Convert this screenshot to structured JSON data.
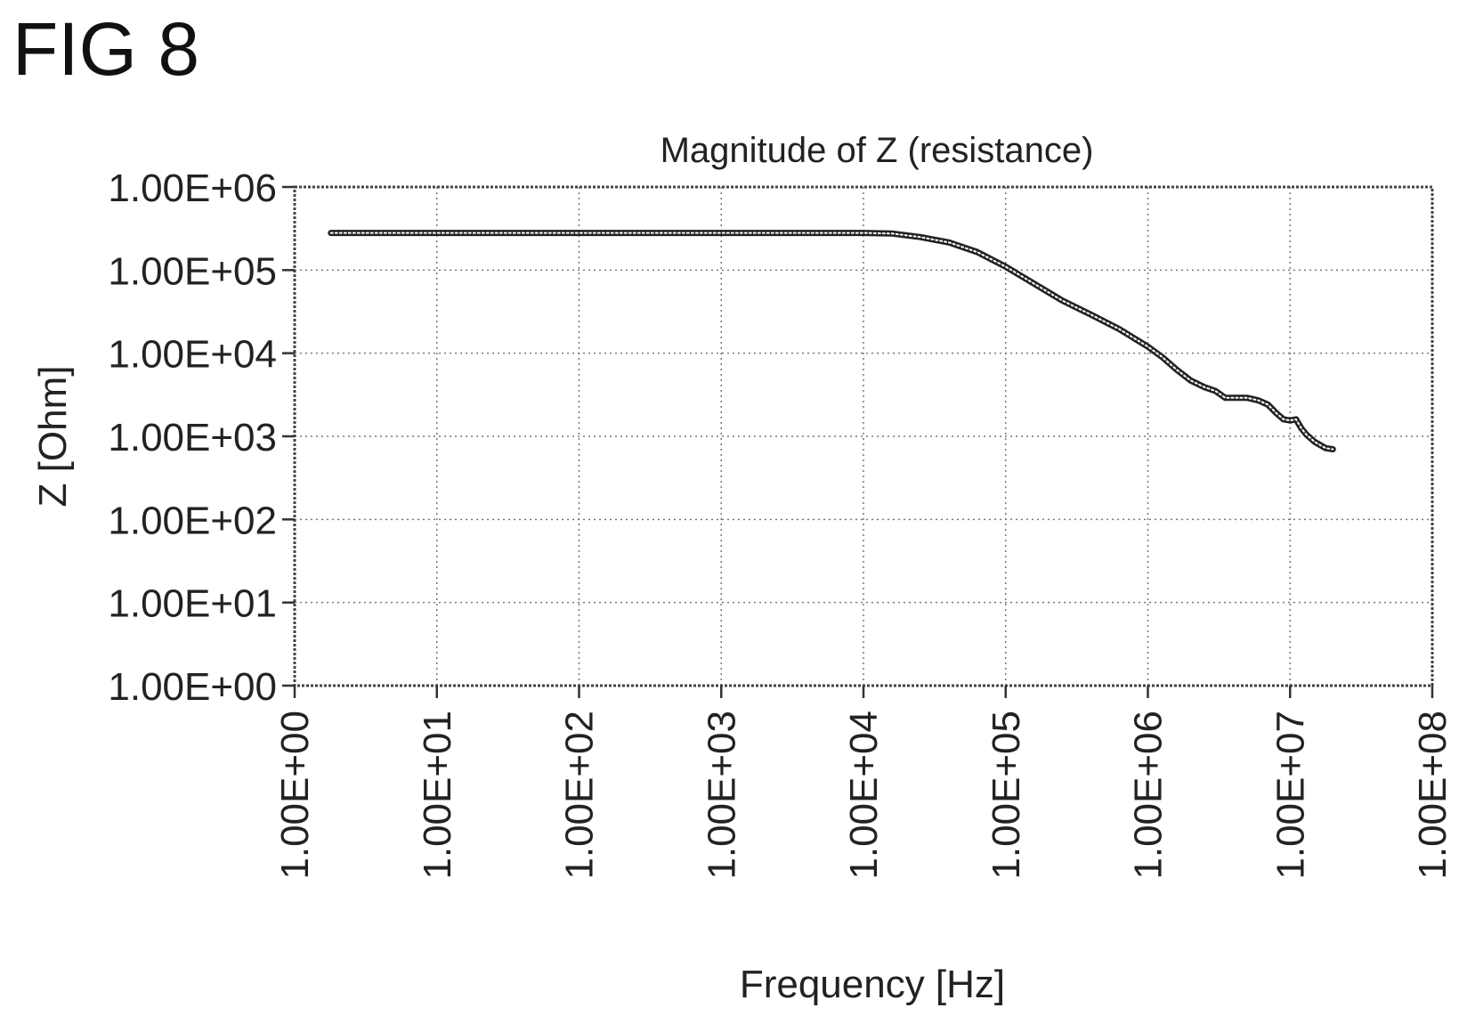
{
  "figure_label": "FIG 8",
  "chart_data": {
    "type": "line",
    "title": "Magnitude of Z (resistance)",
    "xlabel": "Frequency [Hz]",
    "ylabel": "Z [Ohm]",
    "x_scale": "log",
    "y_scale": "log",
    "xlim": [
      1,
      100000000
    ],
    "ylim": [
      1,
      1000000
    ],
    "grid": true,
    "x_ticks": [
      1,
      10,
      100,
      1000,
      10000,
      100000,
      1000000,
      10000000,
      100000000
    ],
    "x_tick_labels": [
      "1.00E+00",
      "1.00E+01",
      "1.00E+02",
      "1.00E+03",
      "1.00E+04",
      "1.00E+05",
      "1.00E+06",
      "1.00E+07",
      "1.00E+08"
    ],
    "y_ticks": [
      1,
      10,
      100,
      1000,
      10000,
      100000,
      1000000
    ],
    "y_tick_labels": [
      "1.00E+00",
      "1.00E+01",
      "1.00E+02",
      "1.00E+03",
      "1.00E+04",
      "1.00E+05",
      "1.00E+06"
    ],
    "series": [
      {
        "x": [
          1.8,
          10,
          100,
          1000,
          10000,
          16000,
          25000,
          40000,
          63000,
          100000,
          160000,
          250000,
          400000,
          630000,
          1000000,
          1260000,
          1600000,
          2000000,
          2500000,
          3000000,
          3500000,
          4000000,
          5000000,
          6000000,
          7000000,
          8000000,
          9000000,
          10000000,
          11000000,
          12000000,
          13000000,
          15000000,
          17800000,
          20000000
        ],
        "y": [
          280000,
          280000,
          280000,
          280000,
          280000,
          275000,
          250000,
          215000,
          165000,
          110000,
          68000,
          43000,
          29000,
          19500,
          12000,
          9000,
          6300,
          4700,
          3900,
          3500,
          2900,
          2900,
          2900,
          2700,
          2400,
          1900,
          1600,
          1550,
          1600,
          1250,
          1050,
          850,
          720,
          700
        ]
      }
    ]
  }
}
